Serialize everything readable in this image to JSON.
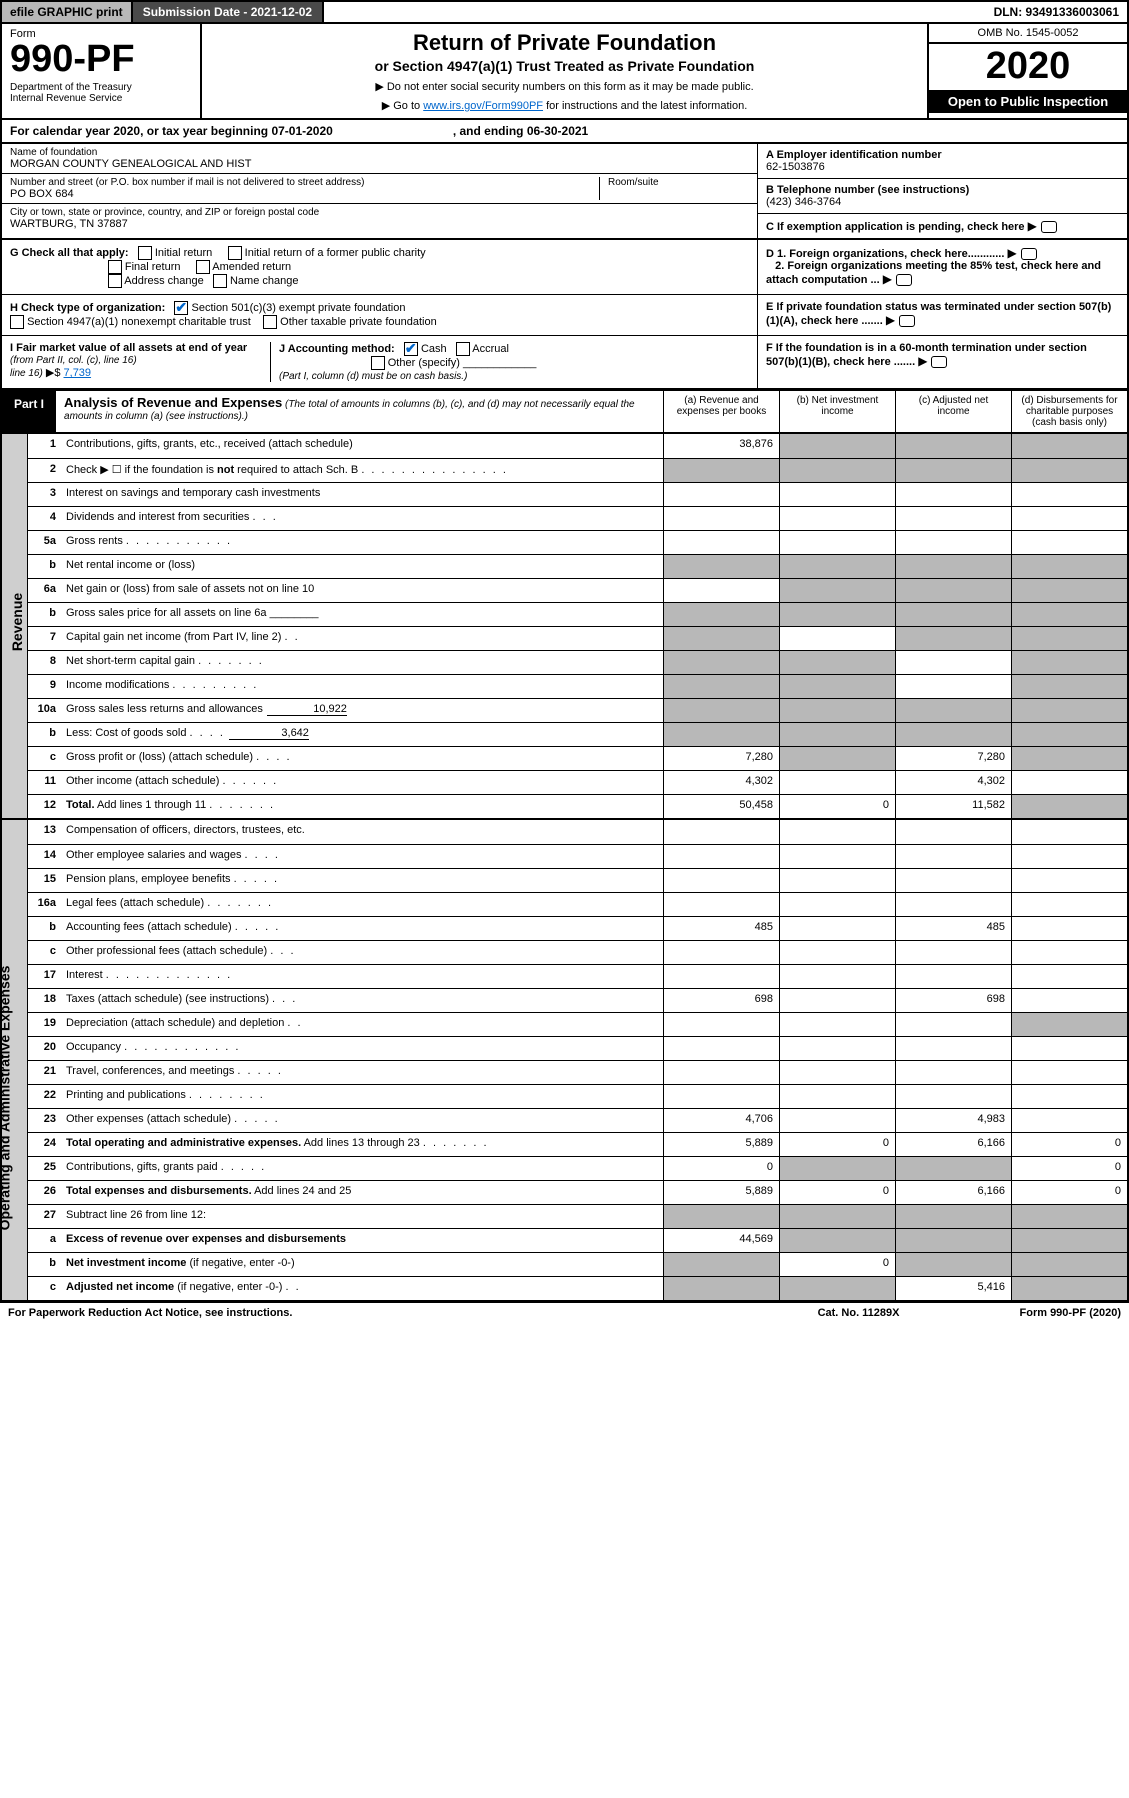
{
  "topbar": {
    "efile": "efile GRAPHIC print",
    "subdate": "Submission Date - 2021-12-02",
    "dln": "DLN: 93491336003061"
  },
  "header": {
    "form_word": "Form",
    "form_num": "990-PF",
    "dept": "Department of the Treasury\nInternal Revenue Service",
    "title1": "Return of Private Foundation",
    "title2": "or Section 4947(a)(1) Trust Treated as Private Foundation",
    "instr1": "▶ Do not enter social security numbers on this form as it may be made public.",
    "instr2_a": "▶ Go to ",
    "instr2_link": "www.irs.gov/Form990PF",
    "instr2_b": " for instructions and the latest information.",
    "omb": "OMB No. 1545-0052",
    "year": "2020",
    "openpub": "Open to Public Inspection"
  },
  "cal": {
    "a": "For calendar year 2020, or tax year beginning 07-01-2020",
    "b": ", and ending 06-30-2021"
  },
  "info": {
    "name_lbl": "Name of foundation",
    "name": "MORGAN COUNTY GENEALOGICAL AND HIST",
    "addr_lbl": "Number and street (or P.O. box number if mail is not delivered to street address)",
    "addr": "PO BOX 684",
    "room_lbl": "Room/suite",
    "city_lbl": "City or town, state or province, country, and ZIP or foreign postal code",
    "city": "WARTBURG, TN  37887",
    "a_lbl": "A Employer identification number",
    "a_val": "62-1503876",
    "b_lbl": "B Telephone number (see instructions)",
    "b_val": "(423) 346-3764",
    "c_lbl": "C If exemption application is pending, check here",
    "d1": "D 1. Foreign organizations, check here............",
    "d2": "2. Foreign organizations meeting the 85% test, check here and attach computation ...",
    "e": "E  If private foundation status was terminated under section 507(b)(1)(A), check here .......",
    "f": "F  If the foundation is in a 60-month termination under section 507(b)(1)(B), check here .......",
    "g_lbl": "G Check all that apply:",
    "g_opts": [
      "Initial return",
      "Initial return of a former public charity",
      "Final return",
      "Amended return",
      "Address change",
      "Name change"
    ],
    "h_lbl": "H Check type of organization:",
    "h_opts": [
      "Section 501(c)(3) exempt private foundation",
      "Section 4947(a)(1) nonexempt charitable trust",
      "Other taxable private foundation"
    ],
    "i_a": "I Fair market value of all assets at end of year ",
    "i_b": "(from Part II, col. (c), line 16)",
    "i_arrow": "▶$ ",
    "i_val": "7,739",
    "j_lbl": "J Accounting method:",
    "j_cash": "Cash",
    "j_accr": "Accrual",
    "j_other": "Other (specify)",
    "j_note": "(Part I, column (d) must be on cash basis.)"
  },
  "part1": {
    "label": "Part I",
    "title_b": "Analysis of Revenue and Expenses",
    "title_i": " (The total of amounts in columns (b), (c), and (d) may not necessarily equal the amounts in column (a) (see instructions).)",
    "col_a": "(a)   Revenue and expenses per books",
    "col_b": "(b)   Net investment income",
    "col_c": "(c)   Adjusted net income",
    "col_d": "(d)   Disbursements for charitable purposes (cash basis only)"
  },
  "sides": {
    "rev": "Revenue",
    "exp": "Operating and Administrative Expenses"
  },
  "rows": [
    {
      "n": "1",
      "d": "Contributions, gifts, grants, etc., received (attach schedule)",
      "a": "38,876",
      "bg": [
        "",
        "g",
        "g",
        "g"
      ]
    },
    {
      "n": "2",
      "d": "Check ▶ ☐ if the foundation is <b>not</b> required to attach Sch. B <span class='dots'>. . . . . . . . . . . . . . .</span>",
      "bg": [
        "g",
        "g",
        "g",
        "g"
      ],
      "noamt": true
    },
    {
      "n": "3",
      "d": "Interest on savings and temporary cash investments"
    },
    {
      "n": "4",
      "d": "Dividends and interest from securities <span class='dots'>. . .</span>"
    },
    {
      "n": "5a",
      "d": "Gross rents <span class='dots'>. . . . . . . . . . .</span>"
    },
    {
      "n": "b",
      "d": "Net rental income or (loss)   ",
      "bg": [
        "g",
        "g",
        "g",
        "g"
      ],
      "noamt": true
    },
    {
      "n": "6a",
      "d": "Net gain or (loss) from sale of assets not on line 10",
      "bg": [
        "",
        "g",
        "g",
        "g"
      ]
    },
    {
      "n": "b",
      "d": "Gross sales price for all assets on line 6a ________",
      "bg": [
        "g",
        "g",
        "g",
        "g"
      ],
      "noamt": true
    },
    {
      "n": "7",
      "d": "Capital gain net income (from Part IV, line 2) <span class='dots'>. .</span>",
      "bg": [
        "g",
        "",
        "g",
        "g"
      ]
    },
    {
      "n": "8",
      "d": "Net short-term capital gain <span class='dots'>. . . . . . .</span>",
      "bg": [
        "g",
        "g",
        "",
        "g"
      ]
    },
    {
      "n": "9",
      "d": "Income modifications <span class='dots'>. . . . . . . . .</span>",
      "bg": [
        "g",
        "g",
        "",
        "g"
      ]
    },
    {
      "n": "10a",
      "d": "Gross sales less returns and allowances",
      "inline": "10,922",
      "bg": [
        "g",
        "g",
        "g",
        "g"
      ],
      "noamt": true
    },
    {
      "n": "b",
      "d": "Less: Cost of goods sold <span class='dots'>. . . .</span>",
      "inline": "3,642",
      "bg": [
        "g",
        "g",
        "g",
        "g"
      ],
      "noamt": true
    },
    {
      "n": "c",
      "d": "Gross profit or (loss) (attach schedule) <span class='dots'>. . . .</span>",
      "a": "7,280",
      "c": "7,280",
      "bg": [
        "",
        "g",
        "",
        "g"
      ]
    },
    {
      "n": "11",
      "d": "Other income (attach schedule) <span class='dots'>. . . . . .</span>",
      "a": "4,302",
      "c": "4,302"
    },
    {
      "n": "12",
      "d": "<b>Total.</b> Add lines 1 through 11 <span class='dots'>. . . . . . .</span>",
      "a": "50,458",
      "b": "0",
      "c": "11,582",
      "bg": [
        "",
        "",
        "",
        "g"
      ]
    }
  ],
  "exp_rows": [
    {
      "n": "13",
      "d": "Compensation of officers, directors, trustees, etc."
    },
    {
      "n": "14",
      "d": "Other employee salaries and wages <span class='dots'>. . . .</span>"
    },
    {
      "n": "15",
      "d": "Pension plans, employee benefits <span class='dots'>. . . . .</span>"
    },
    {
      "n": "16a",
      "d": "Legal fees (attach schedule) <span class='dots'>. . . . . . .</span>"
    },
    {
      "n": "b",
      "d": "Accounting fees (attach schedule) <span class='dots'>. . . . .</span>",
      "a": "485",
      "c": "485"
    },
    {
      "n": "c",
      "d": "Other professional fees (attach schedule) <span class='dots'>. . .</span>"
    },
    {
      "n": "17",
      "d": "Interest <span class='dots'>. . . . . . . . . . . . .</span>"
    },
    {
      "n": "18",
      "d": "Taxes (attach schedule) (see instructions) <span class='dots'>. . .</span>",
      "a": "698",
      "c": "698"
    },
    {
      "n": "19",
      "d": "Depreciation (attach schedule) and depletion <span class='dots'>. .</span>",
      "bg": [
        "",
        "",
        "",
        "g"
      ]
    },
    {
      "n": "20",
      "d": "Occupancy <span class='dots'>. . . . . . . . . . . .</span>"
    },
    {
      "n": "21",
      "d": "Travel, conferences, and meetings <span class='dots'>. . . . .</span>"
    },
    {
      "n": "22",
      "d": "Printing and publications <span class='dots'>. . . . . . . .</span>"
    },
    {
      "n": "23",
      "d": "Other expenses (attach schedule) <span class='dots'>. . . . .</span>",
      "a": "4,706",
      "c": "4,983"
    },
    {
      "n": "24",
      "d": "<b>Total operating and administrative expenses.</b> Add lines 13 through 23 <span class='dots'>. . . . . . .</span>",
      "a": "5,889",
      "b": "0",
      "c": "6,166",
      "dd": "0"
    },
    {
      "n": "25",
      "d": "Contributions, gifts, grants paid <span class='dots'>. . . . .</span>",
      "a": "0",
      "bg": [
        "",
        "g",
        "g",
        ""
      ],
      "dd": "0"
    },
    {
      "n": "26",
      "d": "<b>Total expenses and disbursements.</b> Add lines 24 and 25",
      "a": "5,889",
      "b": "0",
      "c": "6,166",
      "dd": "0"
    },
    {
      "n": "27",
      "d": "Subtract line 26 from line 12:",
      "bg": [
        "g",
        "g",
        "g",
        "g"
      ],
      "noamt": true
    },
    {
      "n": "a",
      "d": "<b>Excess of revenue over expenses and disbursements</b>",
      "a": "44,569",
      "bg": [
        "",
        "g",
        "g",
        "g"
      ]
    },
    {
      "n": "b",
      "d": "<b>Net investment income</b> (if negative, enter -0-)",
      "b": "0",
      "bg": [
        "g",
        "",
        "g",
        "g"
      ]
    },
    {
      "n": "c",
      "d": "<b>Adjusted net income</b> (if negative, enter -0-) <span class='dots'>. .</span>",
      "c": "5,416",
      "bg": [
        "g",
        "g",
        "",
        "g"
      ]
    }
  ],
  "footer": {
    "a": "For Paperwork Reduction Act Notice, see instructions.",
    "b": "Cat. No. 11289X",
    "c": "Form 990-PF (2020)"
  },
  "colors": {
    "grey": "#b8b8b8",
    "dark": "#4a4a4a",
    "link": "#0066cc",
    "sidegrey": "#cfcfcf"
  }
}
